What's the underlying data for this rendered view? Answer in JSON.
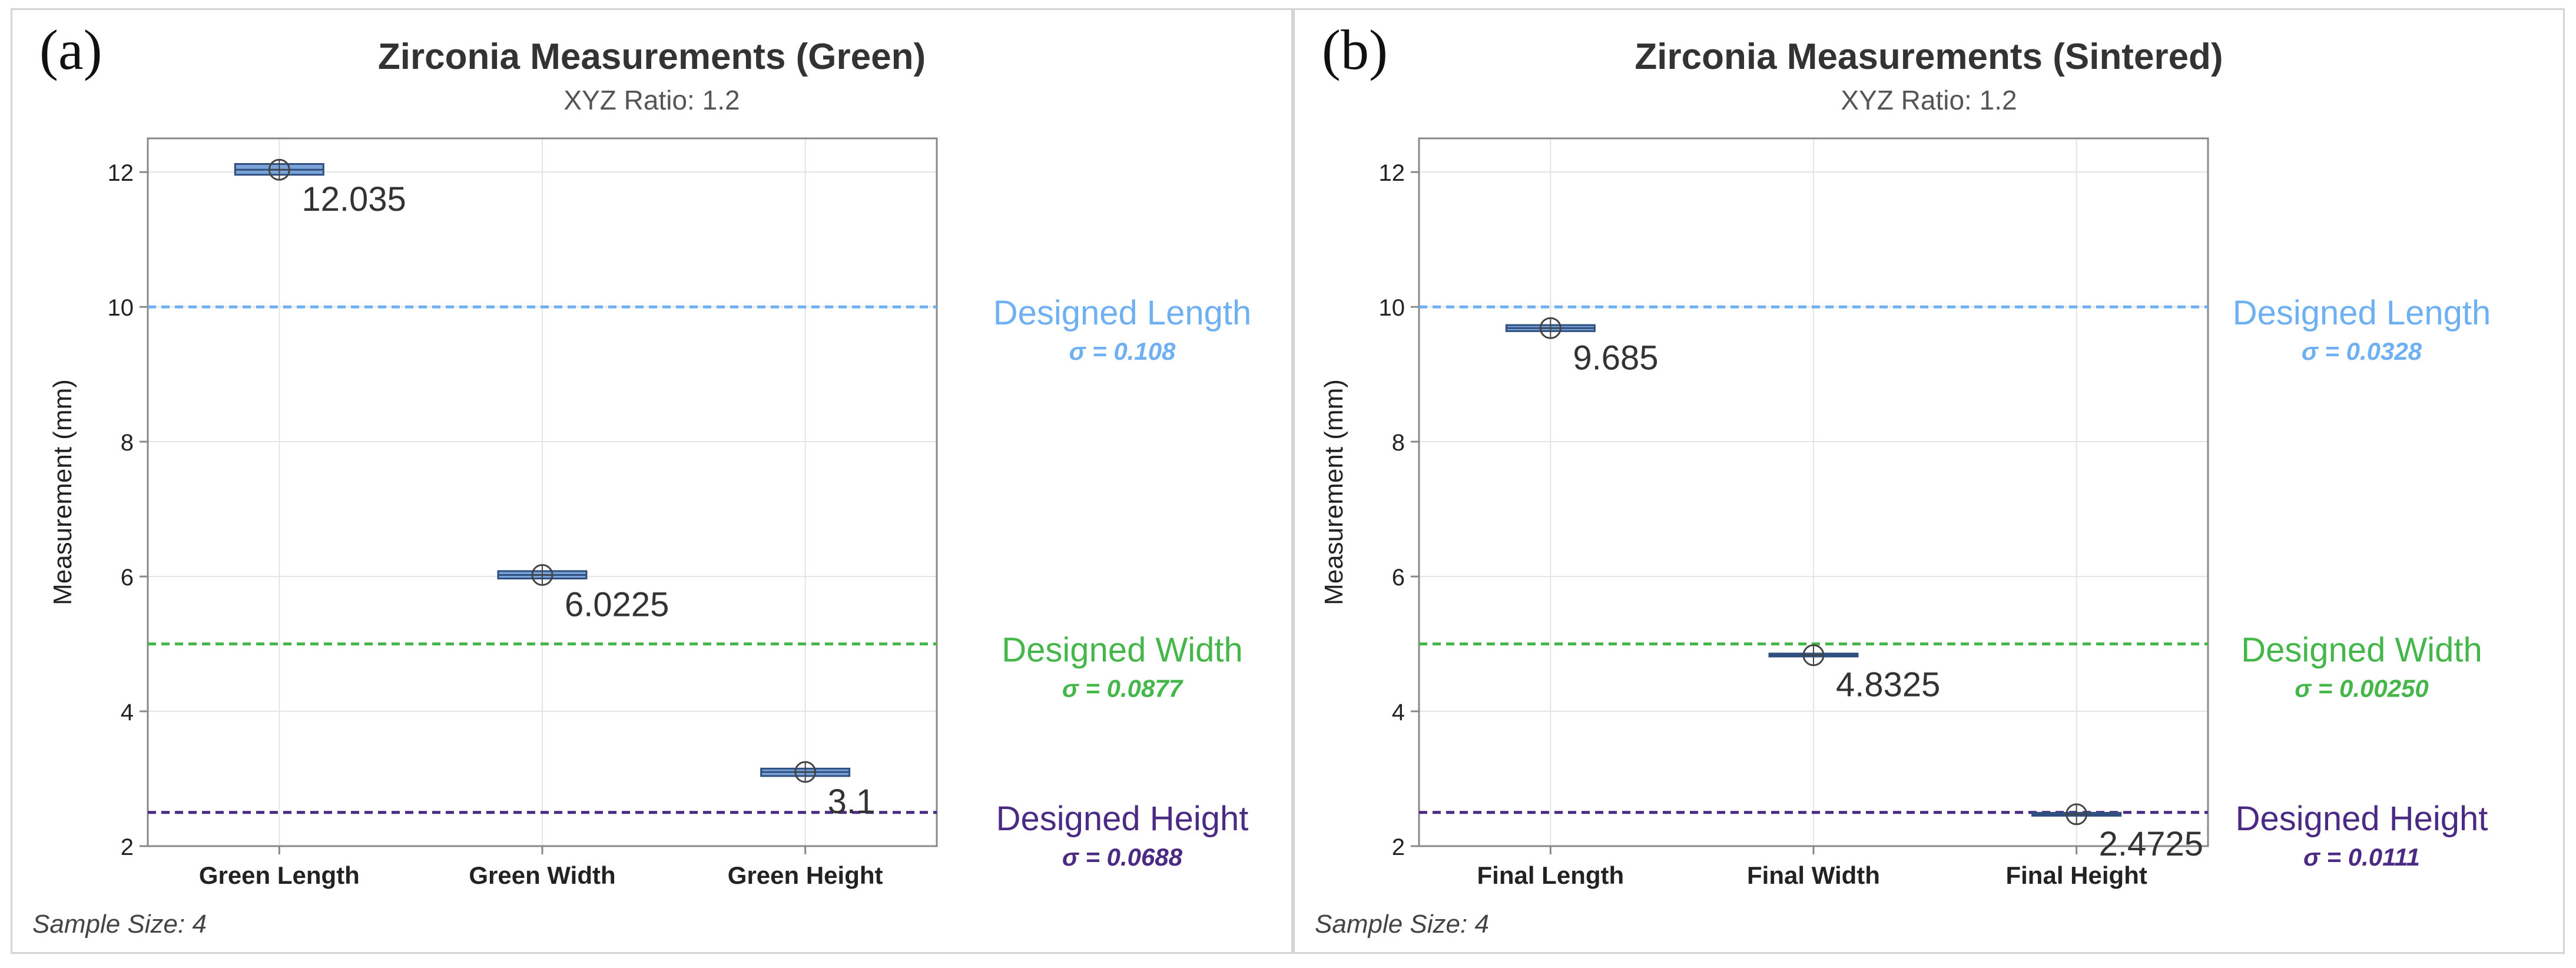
{
  "chart_data": [
    {
      "type": "box",
      "panel_label": "(a)",
      "title": "Zirconia Measurements (Green)",
      "subtitle": "XYZ Ratio: 1.2",
      "ylabel": "Measurement (mm)",
      "xlabel": "",
      "ylim": [
        2,
        12.5
      ],
      "yticks": [
        2,
        4,
        6,
        8,
        10,
        12
      ],
      "grid": true,
      "categories": [
        "Green Length",
        "Green Width",
        "Green Height"
      ],
      "values": [
        12.035,
        6.0225,
        3.1
      ],
      "value_labels": [
        "12.035",
        "6.0225",
        "3.1"
      ],
      "box_ranges": [
        [
          11.96,
          12.12
        ],
        [
          5.97,
          6.08
        ],
        [
          3.04,
          3.15
        ]
      ],
      "reference_lines": [
        {
          "name": "Designed Length",
          "value": 10,
          "sigma_label": "σ = 0.108",
          "color": "#6fb0f2"
        },
        {
          "name": "Designed Width",
          "value": 5,
          "sigma_label": "σ = 0.0877",
          "color": "#45b649"
        },
        {
          "name": "Designed Height",
          "value": 2.5,
          "sigma_label": "σ = 0.0688",
          "color": "#4b2a84"
        }
      ],
      "footnote": "Sample Size: 4"
    },
    {
      "type": "box",
      "panel_label": "(b)",
      "title": "Zirconia Measurements (Sintered)",
      "subtitle": "XYZ Ratio: 1.2",
      "ylabel": "Measurement (mm)",
      "xlabel": "",
      "ylim": [
        2,
        12.5
      ],
      "yticks": [
        2,
        4,
        6,
        8,
        10,
        12
      ],
      "grid": true,
      "categories": [
        "Final Length",
        "Final Width",
        "Final Height"
      ],
      "values": [
        9.685,
        4.8325,
        2.4725
      ],
      "value_labels": [
        "9.685",
        "4.8325",
        "2.4725"
      ],
      "box_ranges": [
        [
          9.64,
          9.73
        ],
        [
          4.83,
          4.84
        ],
        [
          2.465,
          2.48
        ]
      ],
      "reference_lines": [
        {
          "name": "Designed Length",
          "value": 10,
          "sigma_label": "σ = 0.0328",
          "color": "#6fb0f2"
        },
        {
          "name": "Designed Width",
          "value": 5,
          "sigma_label": "σ = 0.00250",
          "color": "#45b649"
        },
        {
          "name": "Designed Height",
          "value": 2.5,
          "sigma_label": "σ = 0.0111",
          "color": "#4b2a84"
        }
      ],
      "footnote": "Sample Size: 4"
    }
  ],
  "colors": {
    "box_fill": "#7aa3d8",
    "box_stroke": "#2f4f7f",
    "grid": "#e4e4e4",
    "axis": "#888888",
    "value_text": "#333333",
    "frame": "#d4d4d4"
  }
}
